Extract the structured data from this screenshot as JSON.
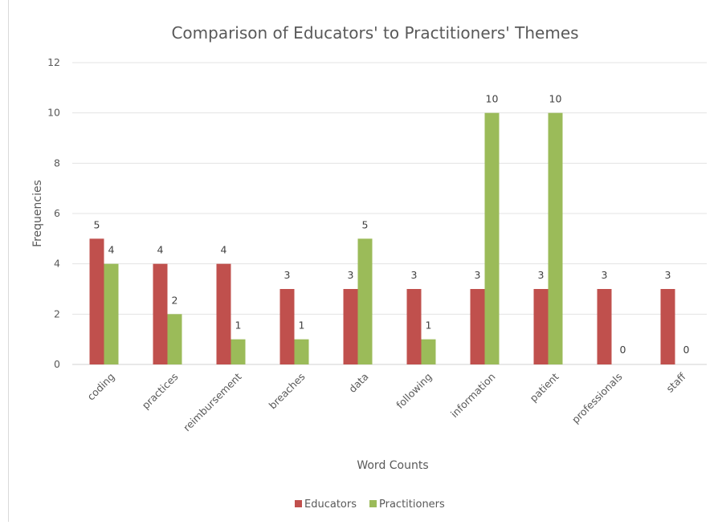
{
  "chart_data": {
    "type": "bar",
    "title": "Comparison of Educators' to Practitioners' Themes",
    "xlabel": "Word Counts",
    "ylabel": "Frequencies",
    "ylim": [
      0,
      12
    ],
    "yticks": [
      0,
      2,
      4,
      6,
      8,
      10,
      12
    ],
    "grid": true,
    "legend_position": "bottom",
    "categories": [
      "coding",
      "practices",
      "reimbursement",
      "breaches",
      "data",
      "following",
      "information",
      "patient",
      "professionals",
      "staff"
    ],
    "series": [
      {
        "name": "Educators",
        "color": "#C0504D",
        "values": [
          5,
          4,
          4,
          3,
          3,
          3,
          3,
          3,
          3,
          3
        ]
      },
      {
        "name": "Practitioners",
        "color": "#9BBB59",
        "values": [
          4,
          2,
          1,
          1,
          5,
          1,
          10,
          10,
          0,
          0
        ]
      }
    ]
  }
}
